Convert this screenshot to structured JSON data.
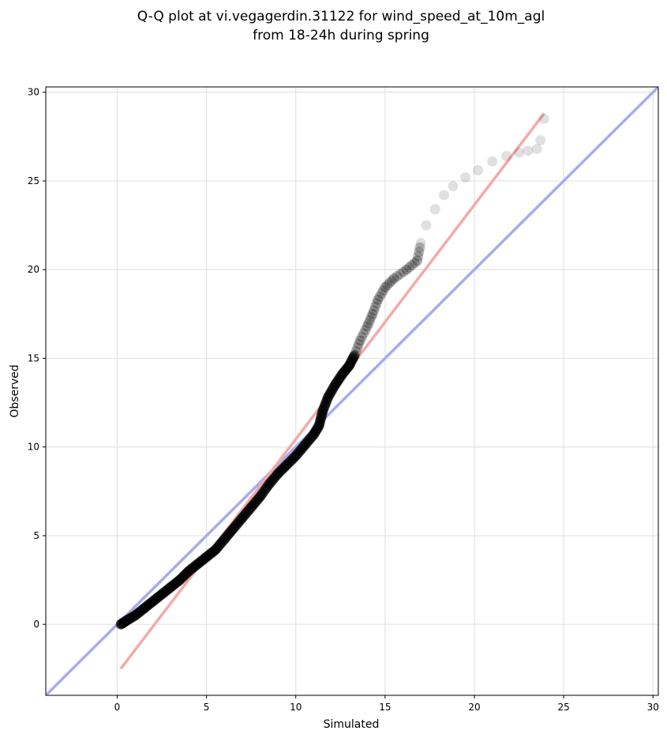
{
  "chart_data": {
    "type": "scatter",
    "title_lines": [
      "Q-Q plot at vi.vegagerdin.31122 for wind_speed_at_10m_agl",
      "from 18-24h during spring"
    ],
    "xlabel": "Simulated",
    "ylabel": "Observed",
    "xlim": [
      -4,
      30.3
    ],
    "ylim": [
      -4,
      30.3
    ],
    "xticks": [
      0,
      5,
      10,
      15,
      20,
      25,
      30
    ],
    "yticks": [
      0,
      5,
      10,
      15,
      20,
      25,
      30
    ],
    "tick_labels": [
      "0",
      "5",
      "10",
      "15",
      "20",
      "25",
      "30"
    ],
    "grid": true,
    "colors": {
      "points": "#000000",
      "identity_line": "#aaaaf0",
      "fit_line": "#f5a9a9"
    },
    "identity_line": {
      "from": [
        -4,
        -4
      ],
      "to": [
        30.3,
        30.3
      ]
    },
    "fit_line": {
      "from": [
        0.2,
        -2.5
      ],
      "to": [
        23.9,
        28.8
      ]
    },
    "quantile_curve": [
      [
        0.2,
        0.0
      ],
      [
        0.5,
        0.2
      ],
      [
        1.0,
        0.5
      ],
      [
        1.5,
        0.9
      ],
      [
        2.0,
        1.3
      ],
      [
        2.5,
        1.7
      ],
      [
        3.0,
        2.1
      ],
      [
        3.5,
        2.5
      ],
      [
        4.0,
        3.0
      ],
      [
        4.5,
        3.4
      ],
      [
        5.0,
        3.8
      ],
      [
        5.5,
        4.2
      ],
      [
        6.0,
        4.8
      ],
      [
        6.5,
        5.4
      ],
      [
        7.0,
        6.0
      ],
      [
        7.5,
        6.6
      ],
      [
        8.0,
        7.2
      ],
      [
        8.5,
        7.9
      ],
      [
        9.0,
        8.5
      ],
      [
        9.5,
        9.0
      ],
      [
        10.0,
        9.5
      ],
      [
        10.5,
        10.1
      ],
      [
        11.0,
        10.7
      ],
      [
        11.3,
        11.2
      ],
      [
        11.5,
        12.0
      ],
      [
        11.8,
        12.8
      ],
      [
        12.2,
        13.5
      ],
      [
        12.6,
        14.1
      ],
      [
        13.0,
        14.6
      ],
      [
        13.3,
        15.2
      ],
      [
        13.6,
        16.0
      ],
      [
        14.0,
        16.8
      ],
      [
        14.3,
        17.5
      ],
      [
        14.6,
        18.3
      ],
      [
        15.0,
        19.0
      ],
      [
        15.5,
        19.5
      ],
      [
        16.2,
        20.0
      ],
      [
        16.8,
        20.5
      ],
      [
        17.0,
        21.5
      ],
      [
        17.3,
        22.5
      ],
      [
        17.8,
        23.4
      ],
      [
        18.3,
        24.2
      ],
      [
        18.8,
        24.7
      ],
      [
        19.5,
        25.2
      ],
      [
        20.2,
        25.6
      ],
      [
        21.0,
        26.1
      ],
      [
        21.8,
        26.4
      ],
      [
        22.5,
        26.6
      ],
      [
        23.0,
        26.7
      ],
      [
        23.5,
        26.8
      ],
      [
        23.7,
        27.3
      ],
      [
        23.9,
        28.5
      ]
    ]
  }
}
